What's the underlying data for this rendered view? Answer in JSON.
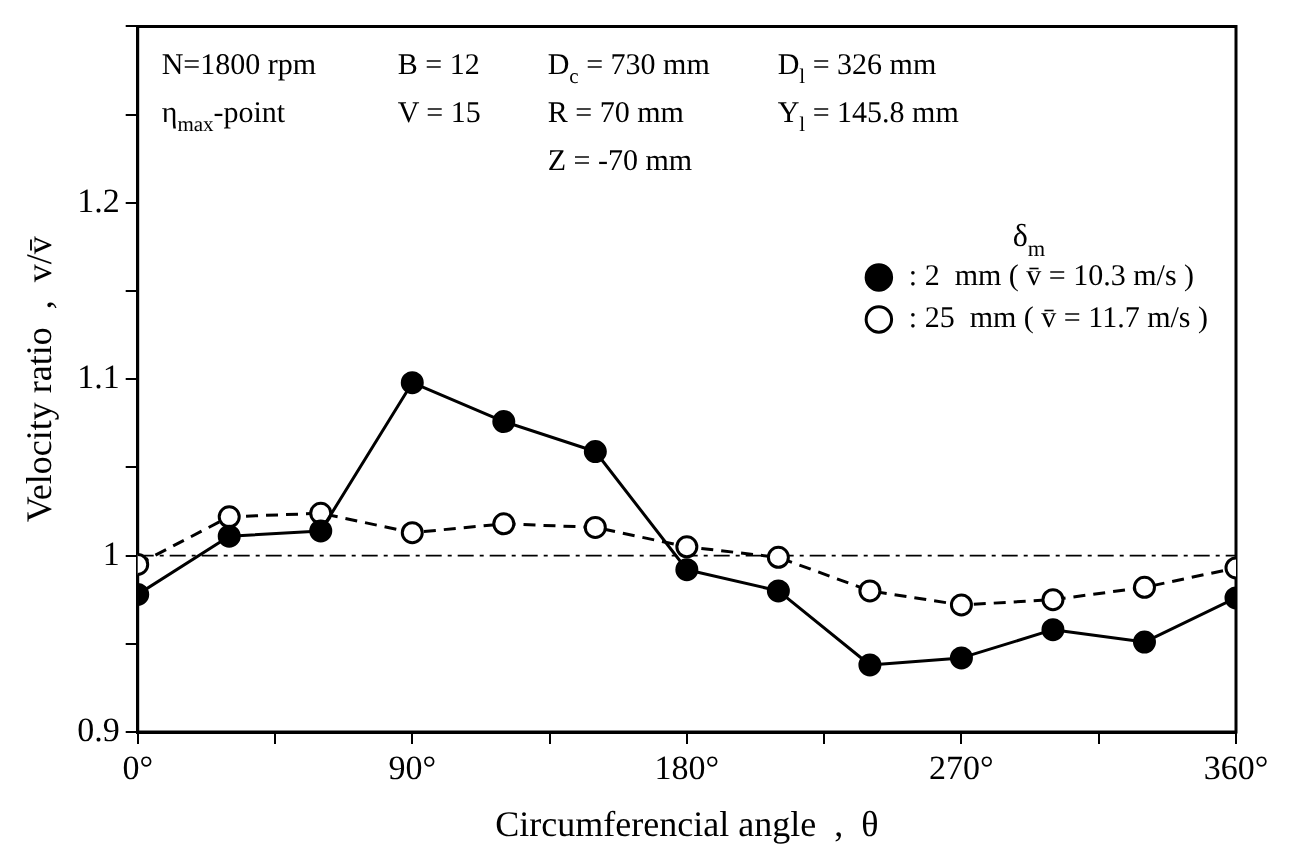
{
  "chart_data": {
    "type": "line",
    "xlabel": "Circumferencial angle  ,  θ",
    "ylabel": "Velocity ratio  ,  v/v̄",
    "legend_title": "δ$_{m}$",
    "legend": "top right",
    "marker": "circle",
    "grid": false,
    "xlim": [
      0,
      360
    ],
    "xticks": [
      {
        "value": 0,
        "label": "0°"
      },
      {
        "value": 45,
        "label": null
      },
      {
        "value": 90,
        "label": "90°"
      },
      {
        "value": 135,
        "label": null
      },
      {
        "value": 180,
        "label": "180°"
      },
      {
        "value": 225,
        "label": null
      },
      {
        "value": 270,
        "label": "270°"
      },
      {
        "value": 315,
        "label": null
      },
      {
        "value": 360,
        "label": "360°"
      }
    ],
    "ylim": [
      0.9,
      1.3
    ],
    "yticks": [
      0.9,
      {
        "value": 0.95,
        "label": null
      },
      1,
      {
        "value": 1.05,
        "label": null
      },
      1.1,
      {
        "value": 1.15,
        "label": null
      },
      1.2,
      {
        "value": 1.25,
        "label": null
      },
      {
        "value": 1.3,
        "label": null
      }
    ],
    "x": [
      0,
      30,
      60,
      90,
      120,
      150,
      180,
      210,
      240,
      270,
      300,
      330,
      360
    ],
    "series": [
      {
        "name": ": 2  mm ( v̄ = 10.3 m/s )",
        "color": "#000000",
        "line_style": "solid",
        "values": [
          0.978,
          1.011,
          1.014,
          1.098,
          1.076,
          1.059,
          0.992,
          0.98,
          0.938,
          0.942,
          0.958,
          0.951,
          0.976
        ]
      },
      {
        "name": ": 25  mm ( v̄ = 11.7 m/s )",
        "color": "#000000",
        "line_style": "dashed",
        "values": [
          0.995,
          1.022,
          1.024,
          1.013,
          1.018,
          1.016,
          1.005,
          0.999,
          0.98,
          0.972,
          0.975,
          0.982,
          0.993
        ]
      }
    ],
    "ref_lines": [
      {
        "axis": "y",
        "value": 1,
        "line_style": "dashdot",
        "color": "#000000"
      }
    ],
    "annotations": [
      "N=1800 rpm",
      "B = 12",
      "D$_{c}$ = 730 mm",
      "D$_{l}$ = 326 mm",
      "η$_{max}$-point",
      "V = 15",
      "R = 70 mm",
      "Y$_{l}$ = 145.8 mm",
      "Z = -70 mm"
    ]
  }
}
